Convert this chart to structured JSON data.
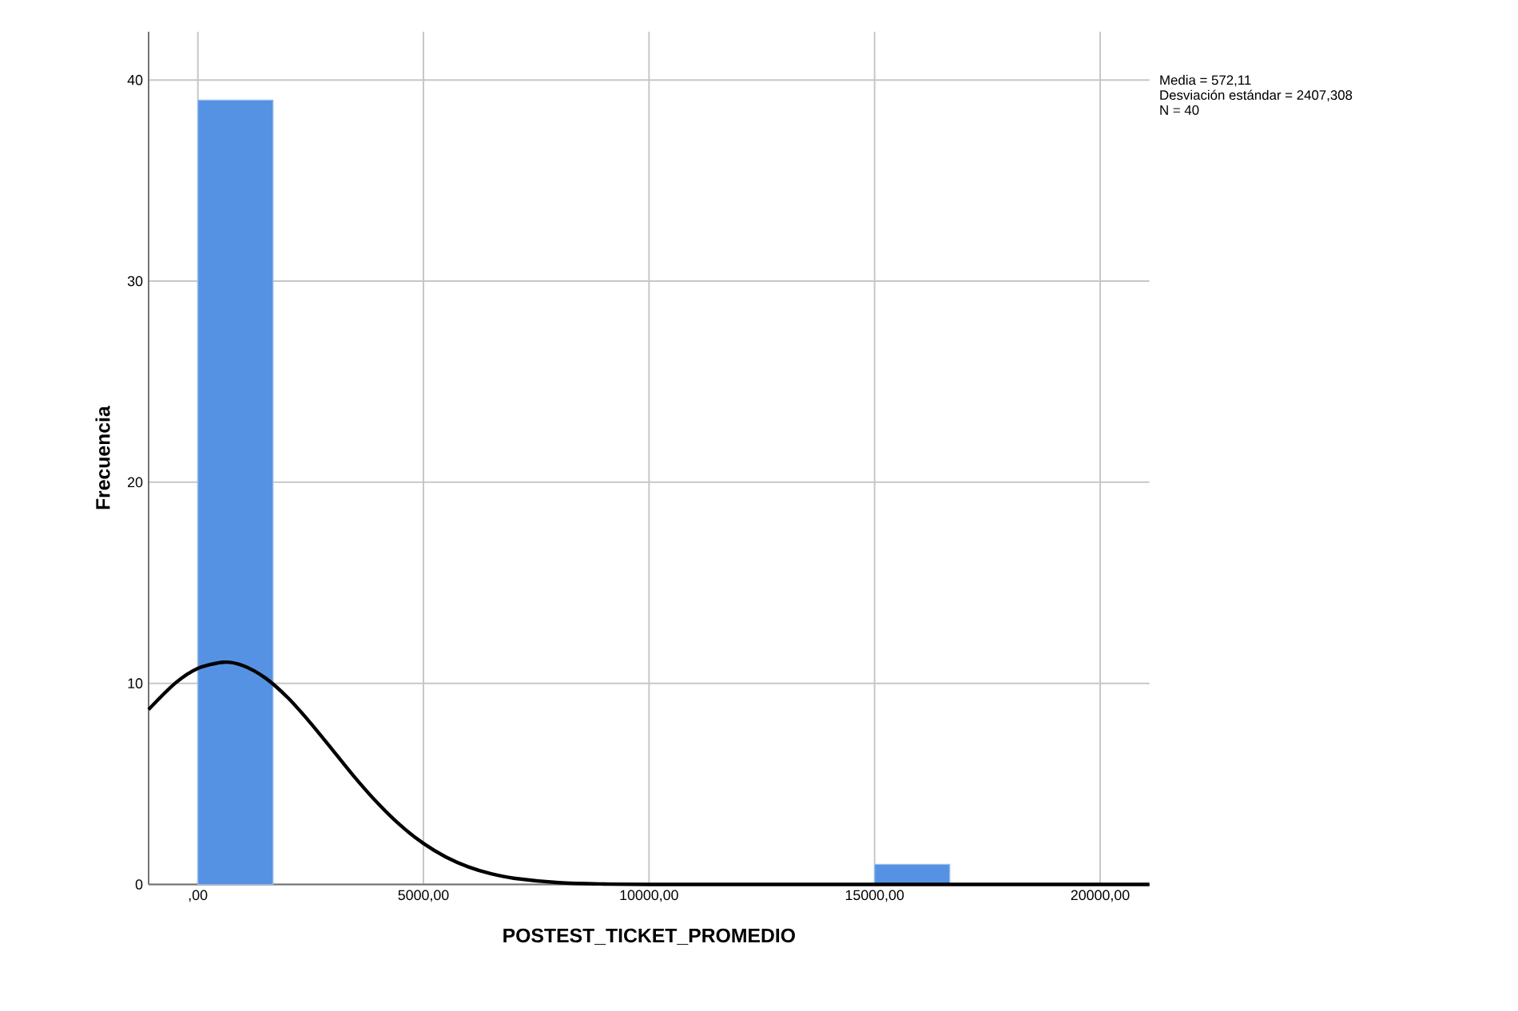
{
  "chart_data": {
    "type": "histogram",
    "xlabel": "POSTEST_TICKET_PROMEDIO",
    "ylabel": "Frecuencia",
    "bins": [
      0,
      1666.67,
      3333.33,
      5000,
      6666.67,
      8333.33,
      10000,
      11666.67,
      13333.33,
      15000,
      16666.67
    ],
    "values": [
      39,
      0,
      0,
      0,
      0,
      0,
      0,
      0,
      0,
      1
    ],
    "color": "#5592e3",
    "series": [
      {
        "type": "line",
        "color": "#000000",
        "x": [
          -1092,
          -500,
          0,
          572,
          1000,
          1500,
          2000,
          2500,
          3000,
          3500,
          4000,
          4500,
          5000,
          5500,
          6000,
          6500,
          7000,
          8000,
          9000,
          10000,
          12000,
          15000,
          18000,
          21092
        ],
        "values": [
          8.7,
          10.01,
          10.74,
          11.05,
          10.88,
          10.26,
          9.27,
          8.02,
          6.65,
          5.27,
          4.01,
          2.92,
          2.04,
          1.36,
          0.87,
          0.53,
          0.31,
          0.09,
          0.02,
          0,
          0,
          0,
          0,
          0
        ]
      }
    ],
    "xlim": [
      -1092,
      21092
    ],
    "ylim": [
      0,
      42.4
    ],
    "xticks": [
      {
        "value": 0,
        "label": ",00"
      },
      {
        "value": 5000,
        "label": "5000,00"
      },
      {
        "value": 10000,
        "label": "10000,00"
      },
      {
        "value": 15000,
        "label": "15000,00"
      },
      {
        "value": 20000,
        "label": "20000,00"
      }
    ],
    "yticks": [
      0,
      10,
      20,
      30,
      40
    ],
    "grid": true,
    "annotations": [
      "Media = 572,11",
      "Desviación estándar = 2407,308",
      "N = 40"
    ]
  }
}
